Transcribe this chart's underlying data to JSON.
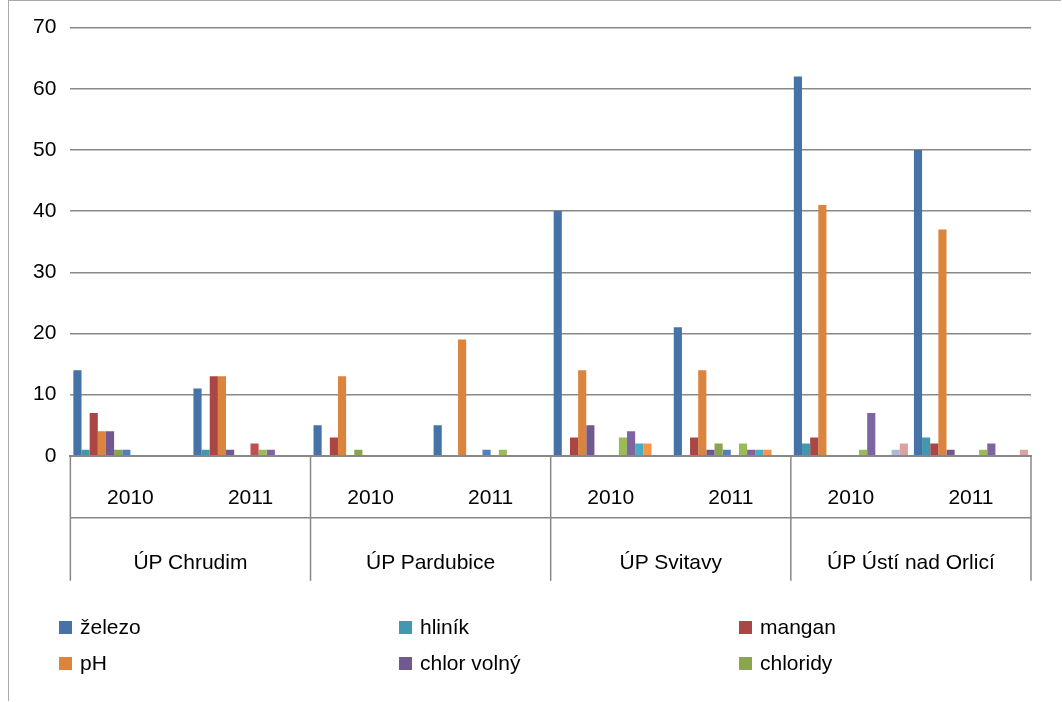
{
  "chart_data": {
    "type": "bar",
    "categories": [
      "2010",
      "2011",
      "2010",
      "2011",
      "2010",
      "2011",
      "2010",
      "2011"
    ],
    "annotations": [
      "ÚP Chrudim",
      "ÚP Pardubice",
      "ÚP Svitavy",
      "ÚP Ústí nad Orlicí"
    ],
    "ylim": [
      0,
      70
    ],
    "yticks": [
      0,
      10,
      20,
      30,
      40,
      50,
      60,
      70
    ],
    "grid": "y",
    "legend": "bottom",
    "series": [
      {
        "name": "železo",
        "color": "#4572a7",
        "values": [
          14,
          11,
          5,
          5,
          40,
          21,
          62,
          50
        ]
      },
      {
        "name": "hliník",
        "color": "#4198af",
        "values": [
          1,
          1,
          null,
          null,
          null,
          null,
          2,
          3
        ]
      },
      {
        "name": "mangan",
        "color": "#aa4643",
        "values": [
          7,
          13,
          3,
          null,
          3,
          3,
          3,
          2
        ]
      },
      {
        "name": "pH",
        "color": "#db843d",
        "values": [
          4,
          13,
          13,
          19,
          14,
          14,
          41,
          37
        ]
      },
      {
        "name": "chlor volný",
        "color": "#71588f",
        "values": [
          4,
          1,
          null,
          null,
          5,
          1,
          null,
          1
        ]
      },
      {
        "name": "chloridy",
        "color": "#89a54e",
        "values": [
          1,
          null,
          1,
          null,
          null,
          2,
          null,
          null
        ]
      },
      {
        "color": "#4f81bd",
        "values": [
          1,
          null,
          null,
          1,
          null,
          1,
          null,
          null
        ]
      },
      {
        "color": "#c0504d",
        "values": [
          null,
          2,
          null,
          null,
          null,
          null,
          null,
          null
        ]
      },
      {
        "color": "#9bbb59",
        "values": [
          null,
          1,
          null,
          1,
          3,
          2,
          1,
          1
        ]
      },
      {
        "color": "#8064a2",
        "values": [
          null,
          1,
          null,
          null,
          4,
          1,
          7,
          2
        ]
      },
      {
        "color": "#4bacc6",
        "values": [
          null,
          null,
          null,
          null,
          2,
          1,
          null,
          null
        ]
      },
      {
        "color": "#f79646",
        "values": [
          null,
          null,
          null,
          null,
          2,
          1,
          null,
          null
        ]
      },
      {
        "color": "#aabad7",
        "values": [
          null,
          null,
          null,
          null,
          null,
          null,
          1,
          null
        ]
      },
      {
        "color": "#d9a3a2",
        "values": [
          null,
          null,
          null,
          null,
          null,
          null,
          2,
          1
        ]
      }
    ]
  }
}
